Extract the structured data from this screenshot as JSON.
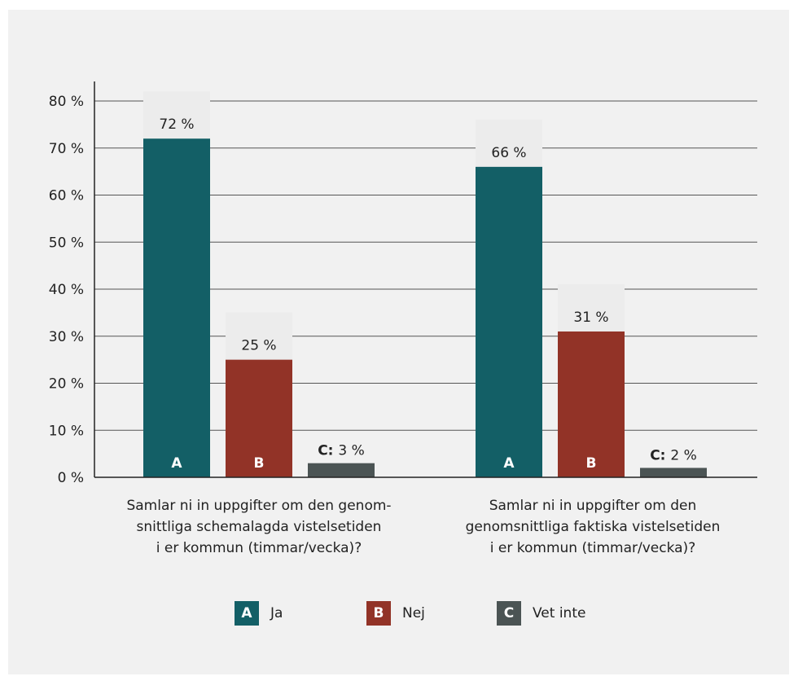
{
  "chart_data": {
    "type": "bar",
    "ylim": [
      0,
      80
    ],
    "yticks": [
      "0 %",
      "10 %",
      "20 %",
      "30 %",
      "40 %",
      "50 %",
      "60 %",
      "70 %",
      "80 %"
    ],
    "grid": true,
    "legend_position": "bottom",
    "categories": [
      "Samlar ni in uppgifter om den genom-snittliga schemalagda vistelsetiden i er kommun (timmar/vecka)?",
      "Samlar ni in uppgifter om den genomsnittliga faktiska vistelsetiden i er kommun (timmar/vecka)?"
    ],
    "category_lines": [
      [
        "Samlar ni in uppgifter om den genom-",
        "snittliga schemalagda vistelsetiden",
        "i er kommun (timmar/vecka)?"
      ],
      [
        "Samlar ni in uppgifter om den",
        "genomsnittliga faktiska vistelsetiden",
        "i er kommun (timmar/vecka)?"
      ]
    ],
    "series": [
      {
        "name": "Ja",
        "key": "A",
        "color": "#135f66",
        "values": [
          72,
          66
        ],
        "labels": [
          "72 %",
          "66 %"
        ]
      },
      {
        "name": "Nej",
        "key": "B",
        "color": "#923327",
        "values": [
          25,
          31
        ],
        "labels": [
          "25 %",
          "31 %"
        ]
      },
      {
        "name": "Vet inte",
        "key": "C",
        "color": "#4b5454",
        "values": [
          3,
          2
        ],
        "labels": [
          "3 %",
          "2 %"
        ],
        "label_prefix": "C:"
      }
    ]
  }
}
